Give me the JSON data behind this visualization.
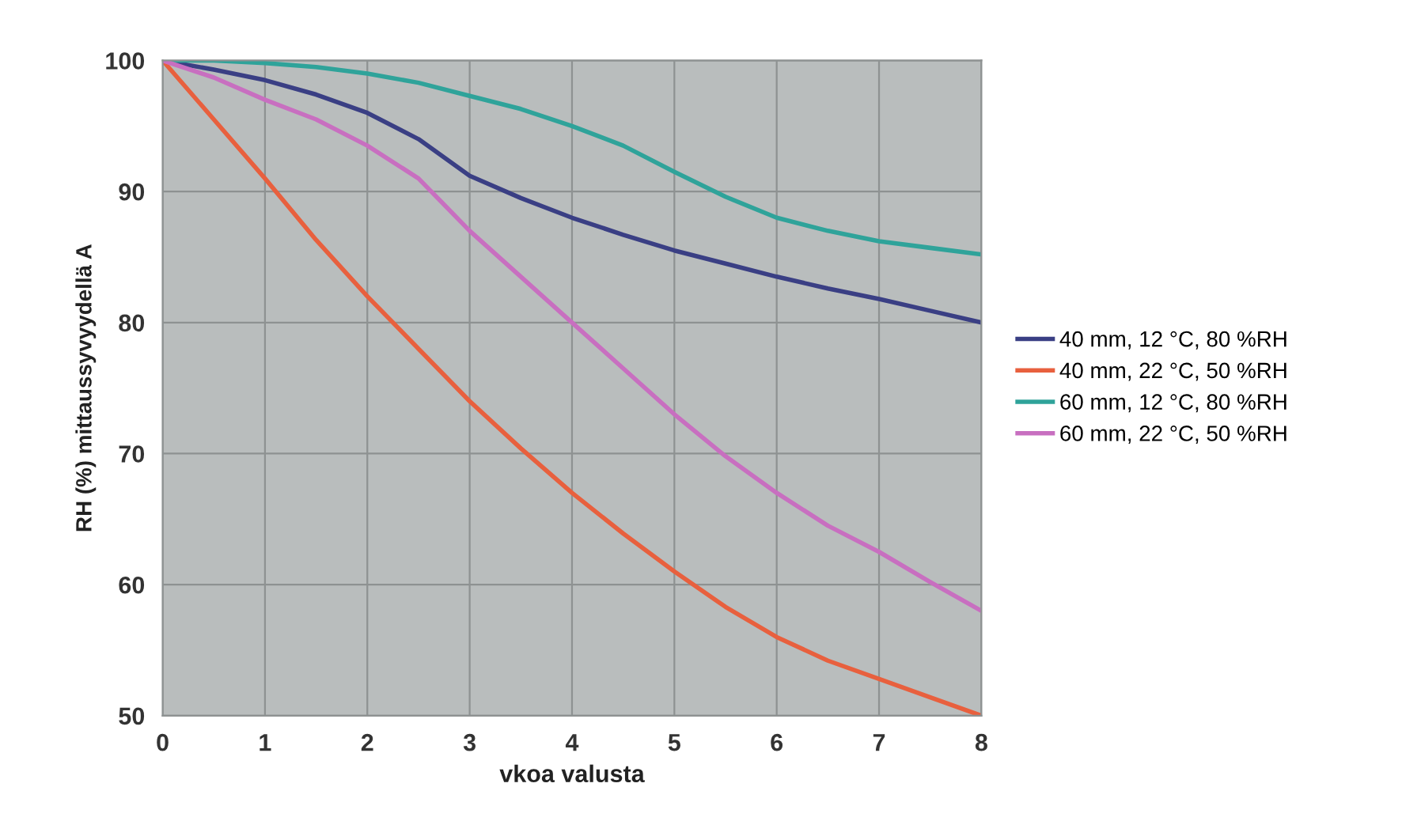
{
  "chart_data": {
    "type": "line",
    "xlabel": "vkoa valusta",
    "ylabel": "RH (%) mittaussyvyydellä A",
    "x": [
      0,
      0.5,
      1,
      1.5,
      2,
      2.5,
      3,
      3.5,
      4,
      4.5,
      5,
      5.5,
      6,
      6.5,
      7,
      7.5,
      8
    ],
    "series": [
      {
        "name": "40 mm, 12 °C, 80 %RH",
        "color": "#3a3f84",
        "values": [
          100,
          99.3,
          98.5,
          97.4,
          96,
          94,
          91.2,
          89.5,
          88,
          86.7,
          85.5,
          84.5,
          83.5,
          82.6,
          81.8,
          80.9,
          80
        ]
      },
      {
        "name": "40 mm, 22 °C, 50 %RH",
        "color": "#e8603e",
        "values": [
          100,
          95.5,
          91,
          86.3,
          82,
          78,
          74,
          70.4,
          67,
          63.9,
          61,
          58.3,
          56,
          54.2,
          52.8,
          51.4,
          50
        ]
      },
      {
        "name": "60 mm, 12 °C, 80 %RH",
        "color": "#2fa39a",
        "values": [
          100,
          100,
          99.8,
          99.5,
          99,
          98.3,
          97.3,
          96.3,
          95,
          93.5,
          91.5,
          89.6,
          88,
          87,
          86.2,
          85.7,
          85.2
        ]
      },
      {
        "name": "60 mm, 22 °C, 50 %RH",
        "color": "#c86fc0",
        "values": [
          100,
          98.7,
          97,
          95.5,
          93.5,
          91,
          87,
          83.5,
          80,
          76.5,
          73,
          69.8,
          67,
          64.5,
          62.5,
          60.2,
          58
        ]
      }
    ],
    "xlim": [
      0,
      8
    ],
    "xticks": [
      0,
      1,
      2,
      3,
      4,
      5,
      6,
      7,
      8
    ],
    "ylim": [
      50,
      100
    ],
    "yticks": [
      50,
      60,
      70,
      80,
      90,
      100
    ],
    "grid": true,
    "legend": "right",
    "marker": "none",
    "line_style": "solid"
  }
}
